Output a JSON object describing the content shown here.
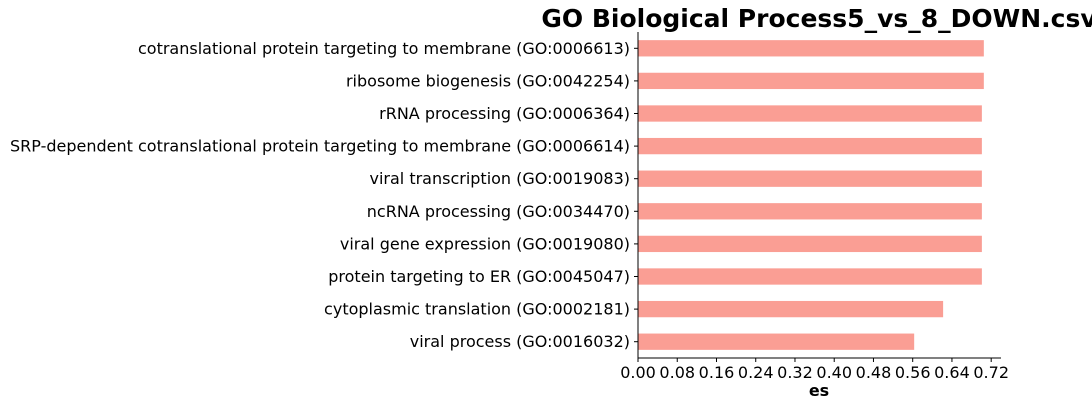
{
  "chart_data": {
    "type": "bar",
    "orientation": "horizontal",
    "title": "GO Biological Process5_vs_8_DOWN.csv",
    "xlabel": "es",
    "ylabel": "",
    "xlim": [
      0,
      0.74
    ],
    "xticks": [
      "0.00",
      "0.08",
      "0.16",
      "0.24",
      "0.32",
      "0.40",
      "0.48",
      "0.56",
      "0.64",
      "0.72"
    ],
    "grid": false,
    "bar_color": "#fa9e94",
    "categories": [
      "cotranslational protein targeting to membrane (GO:0006613)",
      "ribosome biogenesis (GO:0042254)",
      "rRNA processing (GO:0006364)",
      "SRP-dependent cotranslational protein targeting to membrane (GO:0006614)",
      "viral transcription (GO:0019083)",
      "ncRNA processing (GO:0034470)",
      "viral gene expression (GO:0019080)",
      "protein targeting to ER (GO:0045047)",
      "cytoplasmic translation (GO:0002181)",
      "viral process (GO:0016032)"
    ],
    "values": [
      0.705,
      0.705,
      0.701,
      0.701,
      0.701,
      0.701,
      0.701,
      0.701,
      0.622,
      0.563
    ]
  }
}
